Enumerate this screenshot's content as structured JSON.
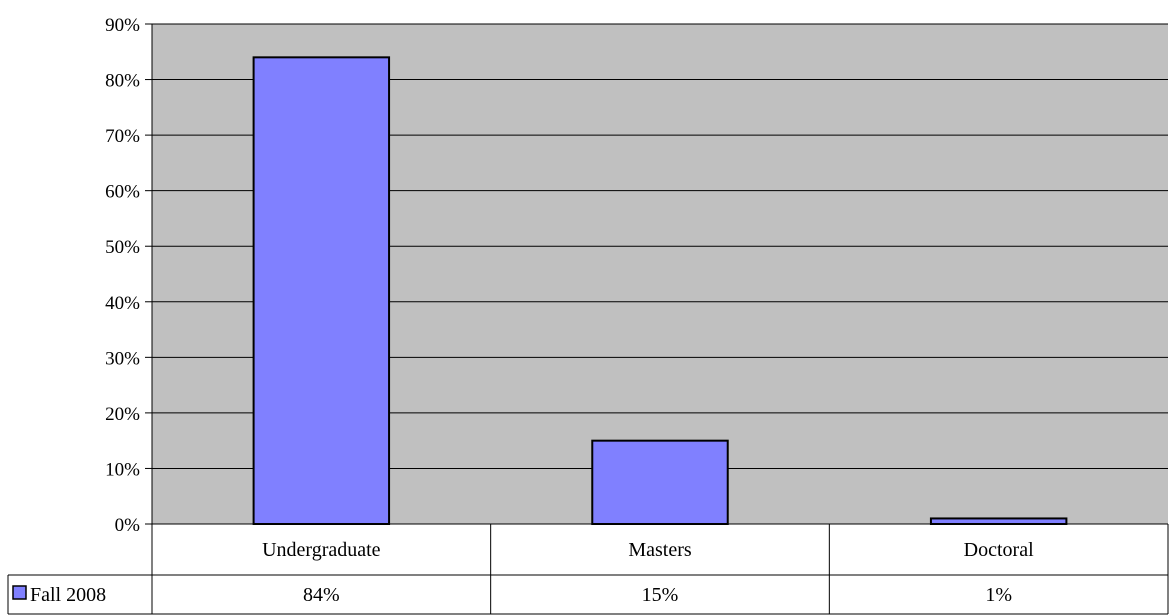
{
  "chart_data": {
    "type": "bar",
    "title": "",
    "xlabel": "",
    "ylabel": "",
    "categories": [
      "Undergraduate",
      "Masters",
      "Doctoral"
    ],
    "series": [
      {
        "name": "Fall 2008",
        "values": [
          84,
          15,
          1
        ],
        "value_labels": [
          "84%",
          "15%",
          "1%"
        ],
        "color": "#8080ff"
      }
    ],
    "ylim": [
      0,
      90
    ],
    "yticks": [
      0,
      10,
      20,
      30,
      40,
      50,
      60,
      70,
      80,
      90
    ],
    "ytick_labels": [
      "0%",
      "10%",
      "20%",
      "30%",
      "40%",
      "50%",
      "60%",
      "70%",
      "80%",
      "90%"
    ],
    "grid": true,
    "legend": "data-table",
    "plot_background": "#c0c0c0"
  }
}
